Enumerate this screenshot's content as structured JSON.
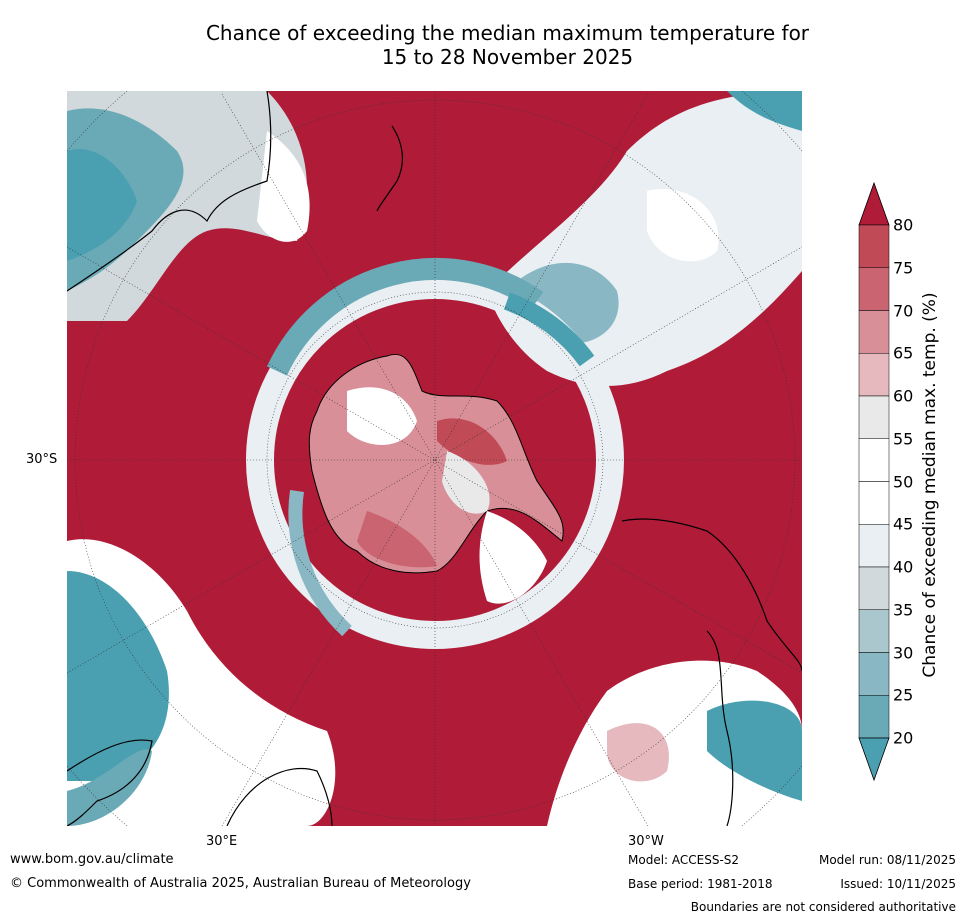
{
  "title": {
    "line1": "Chance of exceeding the median maximum temperature for",
    "line2": "15 to 28 November 2025"
  },
  "map": {
    "labels": {
      "lat": "30°S",
      "lon_east": "30°E",
      "lon_west": "30°W"
    },
    "colors": {
      "high": "#b01c38",
      "low": "#4aa0b0",
      "neutral": "#ffffff"
    }
  },
  "colorbar": {
    "label": "Chance of exceeding median max. temp. (%)",
    "ticks": [
      "80",
      "75",
      "70",
      "65",
      "60",
      "55",
      "50",
      "45",
      "40",
      "35",
      "30",
      "25",
      "20"
    ],
    "bins": [
      {
        "range": "80+",
        "color": "#b01c38"
      },
      {
        "range": "75-80",
        "color": "#c14a57"
      },
      {
        "range": "70-75",
        "color": "#c96470"
      },
      {
        "range": "65-70",
        "color": "#d98f98"
      },
      {
        "range": "60-65",
        "color": "#e5b9bd"
      },
      {
        "range": "55-60",
        "color": "#e9e9e9"
      },
      {
        "range": "50-55",
        "color": "#ffffff"
      },
      {
        "range": "45-50",
        "color": "#ffffff"
      },
      {
        "range": "40-45",
        "color": "#e9eff2"
      },
      {
        "range": "35-40",
        "color": "#d1d9dc"
      },
      {
        "range": "30-35",
        "color": "#a9c7cc"
      },
      {
        "range": "25-30",
        "color": "#89b8c4"
      },
      {
        "range": "20-25",
        "color": "#6aaab6"
      },
      {
        "range": "<20",
        "color": "#4aa0b0"
      }
    ]
  },
  "footer": {
    "website": "www.bom.gov.au/climate",
    "copyright": "© Commonwealth of Australia 2025, Australian Bureau of Meteorology",
    "model": "Model: ACCESS-S2",
    "base_period": "Base period: 1981-2018",
    "model_run": "Model run: 08/11/2025",
    "issued": "Issued: 10/11/2025",
    "disclaimer": "Boundaries are not considered authoritative"
  }
}
